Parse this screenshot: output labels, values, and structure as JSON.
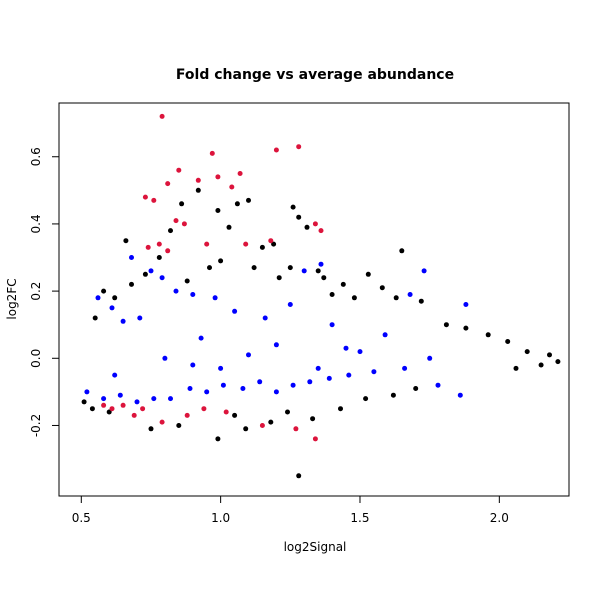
{
  "chart_data": {
    "type": "scatter",
    "title": "Fold change vs average abundance",
    "xlabel": "log2Signal",
    "ylabel": "log2FC",
    "xlim": [
      0.42,
      2.25
    ],
    "ylim": [
      -0.41,
      0.76
    ],
    "xticks": [
      0.5,
      1.0,
      1.5,
      2.0
    ],
    "xtick_labels": [
      "0.5",
      "1.0",
      "1.5",
      "2.0"
    ],
    "yticks": [
      -0.2,
      0.0,
      0.2,
      0.4,
      0.6
    ],
    "ytick_labels": [
      "-0.2",
      "0.0",
      "0.2",
      "0.4",
      "0.6"
    ],
    "grid": false,
    "legend": "none",
    "colors": {
      "all": "#000000",
      "blue": "#0000ff",
      "red": "#dc143c"
    },
    "series": [
      {
        "color": "#000000",
        "points": [
          [
            0.66,
            0.35
          ],
          [
            0.82,
            0.38
          ],
          [
            0.86,
            0.46
          ],
          [
            0.92,
            0.5
          ],
          [
            0.99,
            0.44
          ],
          [
            1.03,
            0.39
          ],
          [
            1.06,
            0.46
          ],
          [
            1.1,
            0.47
          ],
          [
            1.15,
            0.33
          ],
          [
            1.19,
            0.34
          ],
          [
            1.26,
            0.45
          ],
          [
            1.28,
            0.42
          ],
          [
            1.31,
            0.39
          ],
          [
            0.73,
            0.25
          ],
          [
            0.78,
            0.3
          ],
          [
            0.96,
            0.27
          ],
          [
            1.0,
            0.29
          ],
          [
            1.12,
            0.27
          ],
          [
            1.21,
            0.24
          ],
          [
            1.25,
            0.27
          ],
          [
            1.37,
            0.24
          ],
          [
            1.4,
            0.19
          ],
          [
            1.48,
            0.18
          ],
          [
            1.58,
            0.21
          ],
          [
            1.65,
            0.32
          ],
          [
            1.63,
            0.18
          ],
          [
            1.72,
            0.17
          ],
          [
            1.81,
            0.1
          ],
          [
            1.88,
            0.09
          ],
          [
            1.96,
            0.07
          ],
          [
            2.03,
            0.05
          ],
          [
            2.1,
            0.02
          ],
          [
            2.18,
            0.01
          ],
          [
            2.21,
            -0.01
          ],
          [
            2.15,
            -0.02
          ],
          [
            2.06,
            -0.03
          ],
          [
            1.28,
            -0.35
          ],
          [
            0.99,
            -0.24
          ],
          [
            1.09,
            -0.21
          ],
          [
            0.75,
            -0.21
          ],
          [
            0.85,
            -0.2
          ],
          [
            1.18,
            -0.19
          ],
          [
            1.33,
            -0.18
          ],
          [
            1.43,
            -0.15
          ],
          [
            1.52,
            -0.12
          ],
          [
            1.62,
            -0.11
          ],
          [
            1.7,
            -0.09
          ],
          [
            0.55,
            0.12
          ],
          [
            0.58,
            0.2
          ],
          [
            0.62,
            0.18
          ],
          [
            0.68,
            0.22
          ],
          [
            0.88,
            0.23
          ],
          [
            1.44,
            0.22
          ],
          [
            1.53,
            0.25
          ],
          [
            1.35,
            0.26
          ],
          [
            0.51,
            -0.13
          ],
          [
            0.54,
            -0.15
          ],
          [
            0.6,
            -0.16
          ],
          [
            1.05,
            -0.17
          ],
          [
            1.24,
            -0.16
          ]
        ]
      },
      {
        "color": "#0000ff",
        "points": [
          [
            0.68,
            0.3
          ],
          [
            0.75,
            0.26
          ],
          [
            0.79,
            0.24
          ],
          [
            0.84,
            0.2
          ],
          [
            0.9,
            0.19
          ],
          [
            1.3,
            0.26
          ],
          [
            1.36,
            0.28
          ],
          [
            1.73,
            0.26
          ],
          [
            1.68,
            0.19
          ],
          [
            1.88,
            0.16
          ],
          [
            0.56,
            0.18
          ],
          [
            0.61,
            0.15
          ],
          [
            0.65,
            0.11
          ],
          [
            0.71,
            0.12
          ],
          [
            1.16,
            0.12
          ],
          [
            1.4,
            0.1
          ],
          [
            1.59,
            0.07
          ],
          [
            0.93,
            0.06
          ],
          [
            0.98,
            0.18
          ],
          [
            1.05,
            0.14
          ],
          [
            1.25,
            0.16
          ],
          [
            0.52,
            -0.1
          ],
          [
            0.58,
            -0.12
          ],
          [
            0.64,
            -0.11
          ],
          [
            0.7,
            -0.13
          ],
          [
            0.76,
            -0.12
          ],
          [
            0.82,
            -0.12
          ],
          [
            0.89,
            -0.09
          ],
          [
            0.95,
            -0.1
          ],
          [
            1.01,
            -0.08
          ],
          [
            1.08,
            -0.09
          ],
          [
            1.14,
            -0.07
          ],
          [
            1.2,
            -0.1
          ],
          [
            1.26,
            -0.08
          ],
          [
            1.32,
            -0.07
          ],
          [
            1.39,
            -0.06
          ],
          [
            1.46,
            -0.05
          ],
          [
            1.55,
            -0.04
          ],
          [
            1.66,
            -0.03
          ],
          [
            1.78,
            -0.08
          ],
          [
            1.86,
            -0.11
          ],
          [
            1.0,
            -0.03
          ],
          [
            1.2,
            0.04
          ],
          [
            0.8,
            0.0
          ],
          [
            1.45,
            0.03
          ],
          [
            0.62,
            -0.05
          ],
          [
            0.9,
            -0.02
          ],
          [
            1.1,
            0.01
          ],
          [
            1.35,
            -0.03
          ],
          [
            1.5,
            0.02
          ],
          [
            1.75,
            0.0
          ]
        ]
      },
      {
        "color": "#dc143c",
        "points": [
          [
            0.79,
            0.72
          ],
          [
            0.97,
            0.61
          ],
          [
            1.2,
            0.62
          ],
          [
            1.28,
            0.63
          ],
          [
            0.85,
            0.56
          ],
          [
            0.92,
            0.53
          ],
          [
            0.99,
            0.54
          ],
          [
            1.04,
            0.51
          ],
          [
            1.07,
            0.55
          ],
          [
            0.81,
            0.52
          ],
          [
            0.73,
            0.48
          ],
          [
            0.76,
            0.47
          ],
          [
            0.84,
            0.41
          ],
          [
            0.87,
            0.4
          ],
          [
            0.95,
            0.34
          ],
          [
            1.09,
            0.34
          ],
          [
            1.18,
            0.35
          ],
          [
            1.34,
            0.4
          ],
          [
            1.36,
            0.38
          ],
          [
            0.81,
            0.32
          ],
          [
            0.78,
            0.34
          ],
          [
            0.74,
            0.33
          ],
          [
            0.58,
            -0.14
          ],
          [
            0.61,
            -0.15
          ],
          [
            0.65,
            -0.14
          ],
          [
            0.69,
            -0.17
          ],
          [
            0.72,
            -0.15
          ],
          [
            0.79,
            -0.19
          ],
          [
            0.88,
            -0.17
          ],
          [
            0.94,
            -0.15
          ],
          [
            1.15,
            -0.2
          ],
          [
            1.27,
            -0.21
          ],
          [
            1.34,
            -0.24
          ],
          [
            1.02,
            -0.16
          ]
        ]
      }
    ]
  }
}
